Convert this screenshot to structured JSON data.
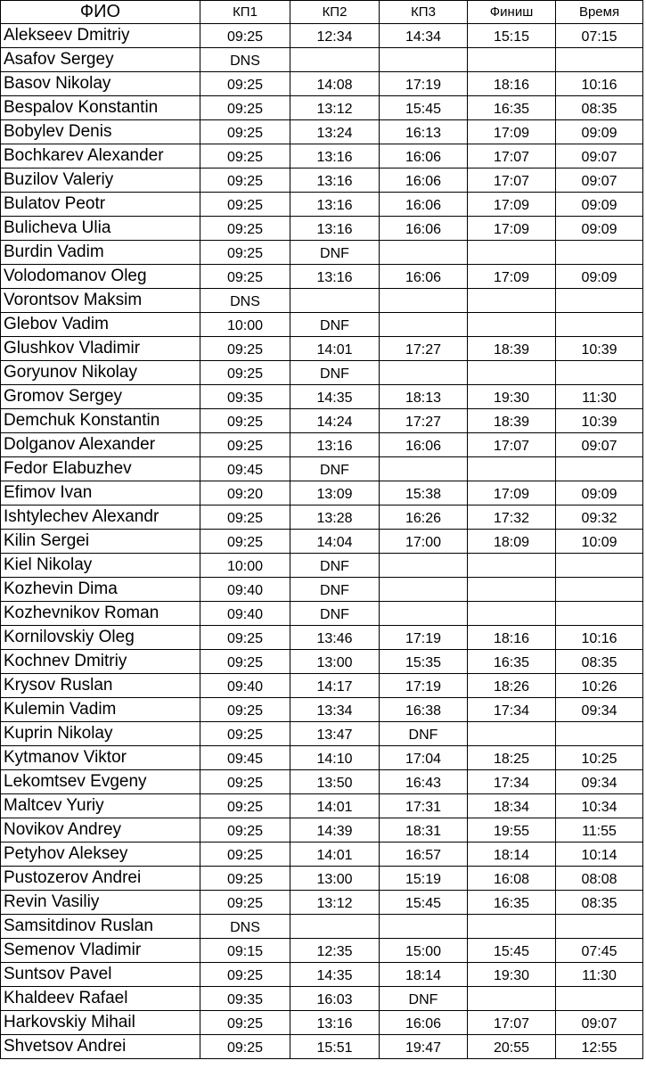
{
  "headers": {
    "name": "ФИО",
    "cp1": "КП1",
    "cp2": "КП2",
    "cp3": "КП3",
    "finish": "Финиш",
    "time": "Время"
  },
  "rows": [
    {
      "name": "Alekseev Dmitriy",
      "cp1": "09:25",
      "cp2": "12:34",
      "cp3": "14:34",
      "finish": "15:15",
      "time": "07:15"
    },
    {
      "name": "Asafov Sergey",
      "cp1": "DNS",
      "cp2": "",
      "cp3": "",
      "finish": "",
      "time": ""
    },
    {
      "name": "Basov Nikolay",
      "cp1": "09:25",
      "cp2": "14:08",
      "cp3": "17:19",
      "finish": "18:16",
      "time": "10:16"
    },
    {
      "name": "Bespalov Konstantin",
      "cp1": "09:25",
      "cp2": "13:12",
      "cp3": "15:45",
      "finish": "16:35",
      "time": "08:35"
    },
    {
      "name": "Bobylev Denis",
      "cp1": "09:25",
      "cp2": "13:24",
      "cp3": "16:13",
      "finish": "17:09",
      "time": "09:09"
    },
    {
      "name": "Bochkarev Alexander",
      "cp1": "09:25",
      "cp2": "13:16",
      "cp3": "16:06",
      "finish": "17:07",
      "time": "09:07"
    },
    {
      "name": "Buzilov Valeriy",
      "cp1": "09:25",
      "cp2": "13:16",
      "cp3": "16:06",
      "finish": "17:07",
      "time": "09:07"
    },
    {
      "name": "Bulatov Peotr",
      "cp1": "09:25",
      "cp2": "13:16",
      "cp3": "16:06",
      "finish": "17:09",
      "time": "09:09"
    },
    {
      "name": "Bulicheva Ulia",
      "cp1": "09:25",
      "cp2": "13:16",
      "cp3": "16:06",
      "finish": "17:09",
      "time": "09:09"
    },
    {
      "name": "Burdin Vadim",
      "cp1": "09:25",
      "cp2": "DNF",
      "cp3": "",
      "finish": "",
      "time": ""
    },
    {
      "name": "Volodomanov Oleg",
      "cp1": "09:25",
      "cp2": "13:16",
      "cp3": "16:06",
      "finish": "17:09",
      "time": "09:09"
    },
    {
      "name": "Vorontsov Maksim",
      "cp1": "DNS",
      "cp2": "",
      "cp3": "",
      "finish": "",
      "time": ""
    },
    {
      "name": "Glebov Vadim",
      "cp1": "10:00",
      "cp2": "DNF",
      "cp3": "",
      "finish": "",
      "time": ""
    },
    {
      "name": "Glushkov Vladimir",
      "cp1": "09:25",
      "cp2": "14:01",
      "cp3": "17:27",
      "finish": "18:39",
      "time": "10:39"
    },
    {
      "name": "Goryunov Nikolay",
      "cp1": "09:25",
      "cp2": "DNF",
      "cp3": "",
      "finish": "",
      "time": ""
    },
    {
      "name": "Gromov Sergey",
      "cp1": "09:35",
      "cp2": "14:35",
      "cp3": "18:13",
      "finish": "19:30",
      "time": "11:30"
    },
    {
      "name": "Demchuk Konstantin",
      "cp1": "09:25",
      "cp2": "14:24",
      "cp3": "17:27",
      "finish": "18:39",
      "time": "10:39"
    },
    {
      "name": "Dolganov Alexander",
      "cp1": "09:25",
      "cp2": "13:16",
      "cp3": "16:06",
      "finish": "17:07",
      "time": "09:07"
    },
    {
      "name": "Fedor Elabuzhev",
      "cp1": "09:45",
      "cp2": "DNF",
      "cp3": "",
      "finish": "",
      "time": ""
    },
    {
      "name": "Efimov Ivan",
      "cp1": "09:20",
      "cp2": "13:09",
      "cp3": "15:38",
      "finish": "17:09",
      "time": "09:09"
    },
    {
      "name": "Ishtylechev Alexandr",
      "cp1": "09:25",
      "cp2": "13:28",
      "cp3": "16:26",
      "finish": "17:32",
      "time": "09:32"
    },
    {
      "name": "Kilin Sergei",
      "cp1": "09:25",
      "cp2": "14:04",
      "cp3": "17:00",
      "finish": "18:09",
      "time": "10:09"
    },
    {
      "name": "Kiel Nikolay",
      "cp1": "10:00",
      "cp2": "DNF",
      "cp3": "",
      "finish": "",
      "time": ""
    },
    {
      "name": "Kozhevin Dima",
      "cp1": "09:40",
      "cp2": "DNF",
      "cp3": "",
      "finish": "",
      "time": ""
    },
    {
      "name": "Kozhevnikov Roman",
      "cp1": "09:40",
      "cp2": "DNF",
      "cp3": "",
      "finish": "",
      "time": ""
    },
    {
      "name": "Kornilovskiy Oleg",
      "cp1": "09:25",
      "cp2": "13:46",
      "cp3": "17:19",
      "finish": "18:16",
      "time": "10:16"
    },
    {
      "name": "Kochnev Dmitriy",
      "cp1": "09:25",
      "cp2": "13:00",
      "cp3": "15:35",
      "finish": "16:35",
      "time": "08:35"
    },
    {
      "name": "Krysov Ruslan",
      "cp1": "09:40",
      "cp2": "14:17",
      "cp3": "17:19",
      "finish": "18:26",
      "time": "10:26"
    },
    {
      "name": "Kulemin Vadim",
      "cp1": "09:25",
      "cp2": "13:34",
      "cp3": "16:38",
      "finish": "17:34",
      "time": "09:34"
    },
    {
      "name": "Kuprin Nikolay",
      "cp1": "09:25",
      "cp2": "13:47",
      "cp3": "DNF",
      "finish": "",
      "time": ""
    },
    {
      "name": "Kytmanov Viktor",
      "cp1": "09:45",
      "cp2": "14:10",
      "cp3": "17:04",
      "finish": "18:25",
      "time": "10:25"
    },
    {
      "name": "Lekomtsev Evgeny",
      "cp1": "09:25",
      "cp2": "13:50",
      "cp3": "16:43",
      "finish": "17:34",
      "time": "09:34"
    },
    {
      "name": "Maltcev Yuriy",
      "cp1": "09:25",
      "cp2": "14:01",
      "cp3": "17:31",
      "finish": "18:34",
      "time": "10:34"
    },
    {
      "name": "Novikov Andrey",
      "cp1": "09:25",
      "cp2": "14:39",
      "cp3": "18:31",
      "finish": "19:55",
      "time": "11:55"
    },
    {
      "name": "Petyhov Aleksey",
      "cp1": "09:25",
      "cp2": "14:01",
      "cp3": "16:57",
      "finish": "18:14",
      "time": "10:14"
    },
    {
      "name": "Pustozerov Andrei",
      "cp1": "09:25",
      "cp2": "13:00",
      "cp3": "15:19",
      "finish": "16:08",
      "time": "08:08"
    },
    {
      "name": "Revin Vasiliy",
      "cp1": "09:25",
      "cp2": "13:12",
      "cp3": "15:45",
      "finish": "16:35",
      "time": "08:35"
    },
    {
      "name": "Samsitdinov Ruslan",
      "cp1": "DNS",
      "cp2": "",
      "cp3": "",
      "finish": "",
      "time": ""
    },
    {
      "name": "Semenov Vladimir",
      "cp1": "09:15",
      "cp2": "12:35",
      "cp3": "15:00",
      "finish": "15:45",
      "time": "07:45"
    },
    {
      "name": "Suntsov Pavel",
      "cp1": "09:25",
      "cp2": "14:35",
      "cp3": "18:14",
      "finish": "19:30",
      "time": "11:30"
    },
    {
      "name": "Khaldeev Rafael",
      "cp1": "09:35",
      "cp2": "16:03",
      "cp3": "DNF",
      "finish": "",
      "time": ""
    },
    {
      "name": "Harkovskiy Mihail",
      "cp1": "09:25",
      "cp2": "13:16",
      "cp3": "16:06",
      "finish": "17:07",
      "time": "09:07"
    },
    {
      "name": "Shvetsov Andrei",
      "cp1": "09:25",
      "cp2": "15:51",
      "cp3": "19:47",
      "finish": "20:55",
      "time": "12:55"
    }
  ]
}
